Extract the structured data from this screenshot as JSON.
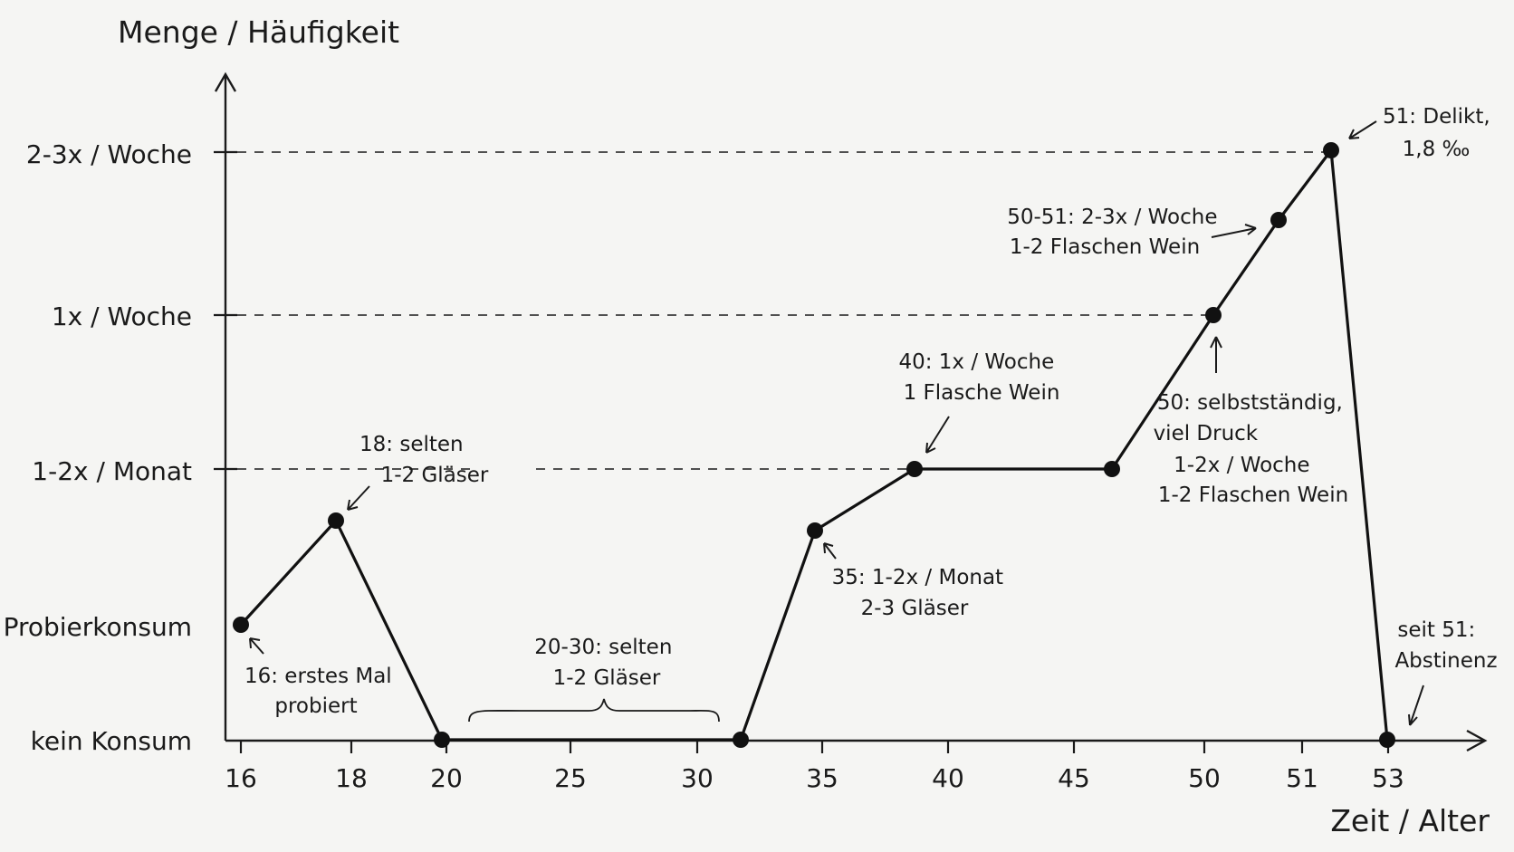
{
  "chart_data": {
    "type": "line",
    "ylabel": "Menge / Häufigkeit",
    "xlabel": "Zeit / Alter",
    "y_levels": [
      "kein Konsum",
      "Probierkonsum",
      "1-2x / Monat",
      "1x / Woche",
      "2-3x / Woche"
    ],
    "x_ticks": [
      "16",
      "18",
      "20",
      "25",
      "30",
      "35",
      "40",
      "45",
      "50",
      "51",
      "53"
    ],
    "grid": "dashed lines at 1-2x / Monat, 1x / Woche, 2-3x / Woche",
    "series": [
      {
        "points": [
          {
            "x": "16",
            "y": "Probierkonsum"
          },
          {
            "x": "18",
            "y": "between Probierkonsum and 1-2x / Monat"
          },
          {
            "x": "20",
            "y": "kein Konsum"
          },
          {
            "x": "31",
            "y": "kein Konsum"
          },
          {
            "x": "35",
            "y": "between Probierkonsum and 1-2x / Monat"
          },
          {
            "x": "39",
            "y": "1-2x / Monat"
          },
          {
            "x": "47",
            "y": "1-2x / Monat"
          },
          {
            "x": "50",
            "y": "1x / Woche"
          },
          {
            "x": "51",
            "y": "between 1x / Woche and 2-3x / Woche"
          },
          {
            "x": "51.5",
            "y": "2-3x / Woche"
          },
          {
            "x": "53",
            "y": "kein Konsum"
          }
        ]
      }
    ],
    "annotations": [
      {
        "lines": [
          "16: erstes Mal",
          "probiert"
        ]
      },
      {
        "lines": [
          "18: selten",
          "1-2 Gläser"
        ]
      },
      {
        "lines": [
          "20-30: selten",
          "1-2 Gläser"
        ]
      },
      {
        "lines": [
          "35: 1-2x / Monat",
          "2-3 Gläser"
        ]
      },
      {
        "lines": [
          "40: 1x / Woche",
          "1 Flasche Wein"
        ]
      },
      {
        "lines": [
          "50: selbstständig,",
          "viel Druck",
          "1-2x / Woche",
          "1-2 Flaschen Wein"
        ]
      },
      {
        "lines": [
          "50-51: 2-3x / Woche",
          "1-2 Flaschen Wein"
        ]
      },
      {
        "lines": [
          "51: Delikt,",
          "1,8 ‰"
        ]
      },
      {
        "lines": [
          "seit 51:",
          "Abstinenz"
        ]
      }
    ]
  }
}
